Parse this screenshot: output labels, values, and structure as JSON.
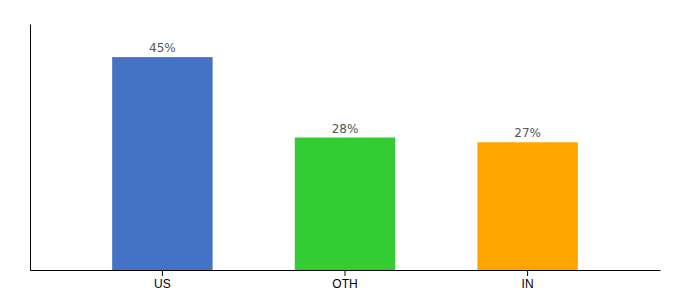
{
  "chart_data": {
    "type": "bar",
    "categories": [
      "US",
      "OTH",
      "IN"
    ],
    "values": [
      45,
      28,
      27
    ],
    "colors": [
      "#4472C4",
      "#33CC33",
      "#FFA500"
    ],
    "value_labels": [
      "45%",
      "28%",
      "27%"
    ],
    "data_labels": true,
    "ylim": [
      0,
      52
    ],
    "tick_labels": "x"
  }
}
